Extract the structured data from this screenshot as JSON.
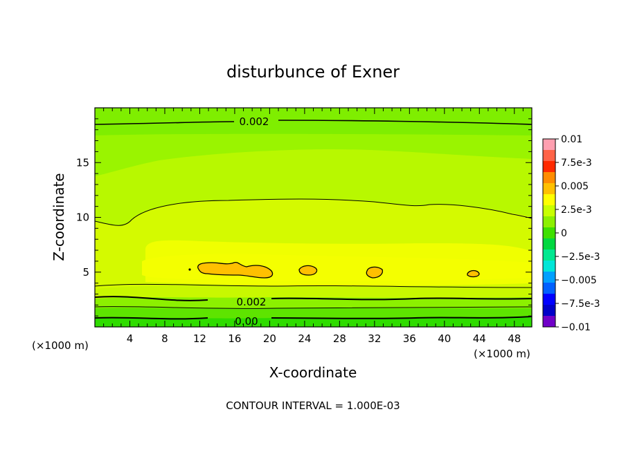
{
  "chart_data": {
    "type": "contour",
    "title": "disturbunce of Exner",
    "xlabel": "X-coordinate",
    "ylabel": "Z-coordinate",
    "x_unit_left": "(×1000 m)",
    "x_unit_right": "(×1000 m)",
    "footer": "CONTOUR INTERVAL = 1.000E-03",
    "xlim": [
      0,
      50
    ],
    "ylim": [
      0,
      20
    ],
    "xticks": [
      4,
      8,
      12,
      16,
      20,
      24,
      28,
      32,
      36,
      40,
      44,
      48
    ],
    "yticks": [
      5,
      10,
      15
    ],
    "contour_labels": [
      {
        "text": "0.002",
        "x": 25,
        "z": 18.6
      },
      {
        "text": "0.002",
        "x": 24.7,
        "z": 2.3
      },
      {
        "text": "0.00",
        "x": 24.7,
        "z": 0.5
      }
    ],
    "colorbar": {
      "labels": [
        "0.01",
        "7.5e-3",
        "0.005",
        "2.5e-3",
        "0",
        "−2.5e-3",
        "−0.005",
        "−7.5e-3",
        "−0.01"
      ],
      "colors": [
        "#ff9fb0",
        "#ff6347",
        "#ff2a00",
        "#ff8c00",
        "#ffc000",
        "#ffff00",
        "#c8ff00",
        "#8cf000",
        "#3ee000",
        "#00d840",
        "#00e890",
        "#00e6d8",
        "#00a0ff",
        "#0060ff",
        "#0000ff",
        "#0000c8",
        "#7000c8"
      ]
    }
  }
}
